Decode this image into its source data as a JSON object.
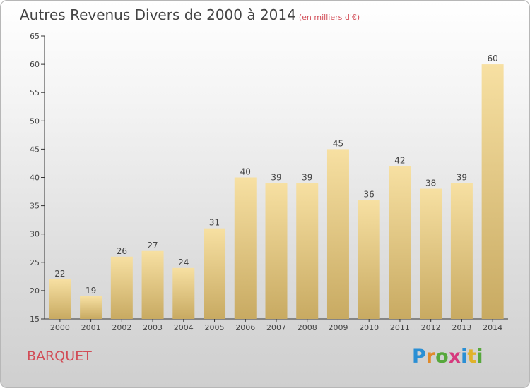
{
  "title": "Autres Revenus Divers de 2000 à 2014",
  "unit_note": "(en milliers d'€)",
  "town": "BARQUET",
  "logo": {
    "text": "Proxiti",
    "letters": [
      {
        "ch": "P",
        "color": "#2a8fd4"
      },
      {
        "ch": "r",
        "color": "#e08a2a"
      },
      {
        "ch": "o",
        "color": "#57a83c"
      },
      {
        "ch": "x",
        "color": "#d63a7e"
      },
      {
        "ch": "i",
        "color": "#2a8fd4"
      },
      {
        "ch": "t",
        "color": "#e0b22a"
      },
      {
        "ch": "i",
        "color": "#57a83c"
      }
    ]
  },
  "chart_data": {
    "type": "bar",
    "categories": [
      "2000",
      "2001",
      "2002",
      "2003",
      "2004",
      "2005",
      "2006",
      "2007",
      "2008",
      "2009",
      "2010",
      "2011",
      "2012",
      "2013",
      "2014"
    ],
    "values": [
      22,
      19,
      26,
      27,
      24,
      31,
      40,
      39,
      39,
      45,
      36,
      42,
      38,
      39,
      60
    ],
    "ylim": [
      15,
      65
    ],
    "yticks": [
      15,
      20,
      25,
      30,
      35,
      40,
      45,
      50,
      55,
      60,
      65
    ],
    "grid": false,
    "bar_color_top": "#f7e0a2",
    "bar_color_bottom": "#c8aa62",
    "axis_color": "#333333"
  }
}
